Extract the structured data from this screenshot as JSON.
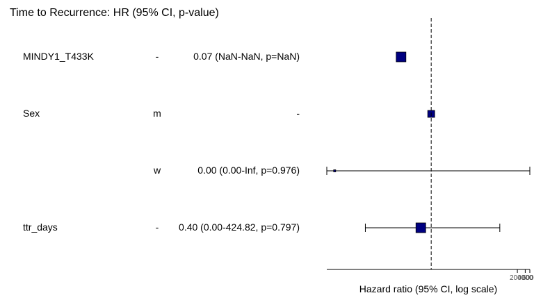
{
  "chart_data": {
    "type": "forest",
    "title": "Time to Recurrence: HR (95% CI, p-value)",
    "xlabel": "Hazard ratio (95% CI, log scale)",
    "x_scale": "log",
    "reference_line": 1,
    "xlim": [
      0.0001,
      6000
    ],
    "x_tick_labels": [
      "2000",
      "4000",
      "6000"
    ],
    "x_ticks": [
      2000,
      4000,
      6000
    ],
    "rows": [
      {
        "variable": "MINDY1_T433K",
        "level": "-",
        "label": "0.07 (NaN-NaN, p=NaN)",
        "hr": 0.07,
        "ci_low": null,
        "ci_high": null,
        "box": "large"
      },
      {
        "variable": "Sex",
        "level": "m",
        "label": "-",
        "hr": 1,
        "ci_low": null,
        "ci_high": null,
        "box": "small"
      },
      {
        "variable": "",
        "level": "w",
        "label": "0.00 (0.00-Inf, p=0.976)",
        "hr": 0.0002,
        "ci_low": 0.0001,
        "ci_high": 6000,
        "box": "tiny"
      },
      {
        "variable": "ttr_days",
        "level": "-",
        "label": "0.40 (0.00-424.82, p=0.797)",
        "hr": 0.4,
        "ci_low": 0.003,
        "ci_high": 424.82,
        "box": "large"
      }
    ]
  },
  "colors": {
    "box": "#000080",
    "line": "#000000",
    "tick_label": "#555555"
  }
}
